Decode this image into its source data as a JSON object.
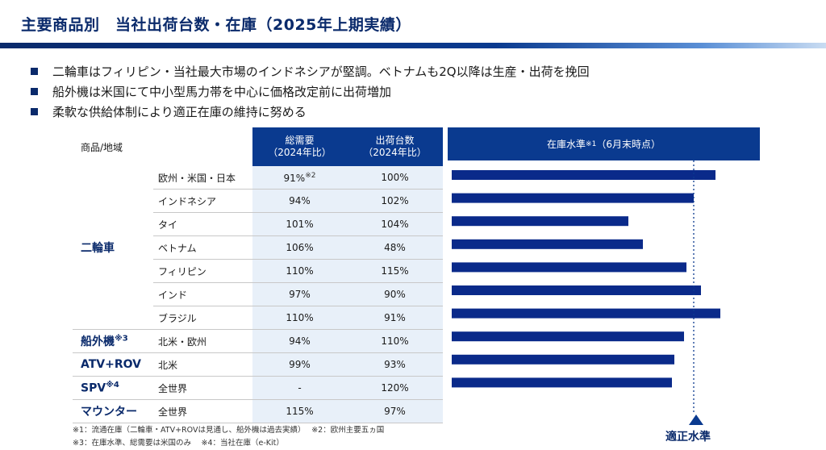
{
  "title": "主要商品別　当社出荷台数・在庫（2025年上期実績）",
  "bullets": [
    "二輪車はフィリピン・当社最大市場のインドネシアが堅調。ベトナムも2Q以降は生産・出荷を挽回",
    "船外機は米国にて中小型馬力帯を中心に価格改定前に出荷増加",
    "柔軟な供給体制により適正在庫の維持に努める"
  ],
  "table": {
    "headers": {
      "category": "商品/地域",
      "demand": "総需要",
      "demand_sub": "（2024年比）",
      "shipments": "出荷台数",
      "shipments_sub": "（2024年比）"
    },
    "categories": {
      "motorcycle": "二輪車",
      "outboard": "船外機",
      "outboard_note": "※3",
      "atv": "ATV+ROV",
      "spv": "SPV",
      "spv_note": "※4",
      "mountain": "マウンター"
    },
    "rows": [
      {
        "region": "欧州・米国・日本",
        "demand": "91%",
        "demand_note": "※2",
        "shipments": "100%"
      },
      {
        "region": "インドネシア",
        "demand": "94%",
        "shipments": "102%"
      },
      {
        "region": "タイ",
        "demand": "101%",
        "shipments": "104%"
      },
      {
        "region": "ベトナム",
        "demand": "106%",
        "shipments": "48%"
      },
      {
        "region": "フィリピン",
        "demand": "110%",
        "shipments": "115%"
      },
      {
        "region": "インド",
        "demand": "97%",
        "shipments": "90%"
      },
      {
        "region": "ブラジル",
        "demand": "110%",
        "shipments": "91%"
      },
      {
        "region": "北米・欧州",
        "demand": "94%",
        "shipments": "110%"
      },
      {
        "region": "北米",
        "demand": "99%",
        "shipments": "93%"
      },
      {
        "region": "全世界",
        "demand": "-",
        "shipments": "120%"
      },
      {
        "region": "全世界",
        "demand": "115%",
        "shipments": "97%"
      }
    ]
  },
  "chart_header": {
    "label": "在庫水準",
    "note": "※1",
    "suffix": "（6月末時点）"
  },
  "chart_data": {
    "type": "bar",
    "orientation": "horizontal",
    "categories": [
      "欧州・米国・日本",
      "インドネシア",
      "タイ",
      "ベトナム",
      "フィリピン",
      "インド",
      "ブラジル",
      "船外機 北米・欧州",
      "ATV+ROV 北米",
      "SPV 全世界"
    ],
    "values": [
      1.09,
      1.0,
      0.73,
      0.79,
      0.97,
      1.03,
      1.11,
      0.96,
      0.92,
      0.91
    ],
    "reference_line": {
      "value": 1.0,
      "label": "適正水準",
      "style": "dotted"
    },
    "bar_color": "#0a2a8a",
    "grid": false
  },
  "appropriate_level_label": "適正水準",
  "notes": {
    "line1": "※1：流通在庫（二輪車・ATV+ROVは見通し、船外機は過去実績）　 ※2：欧州主要五ヵ国",
    "line2": "※3：在庫水準、総需要は米国のみ　 ※4：当社在庫（e-Kit）"
  }
}
